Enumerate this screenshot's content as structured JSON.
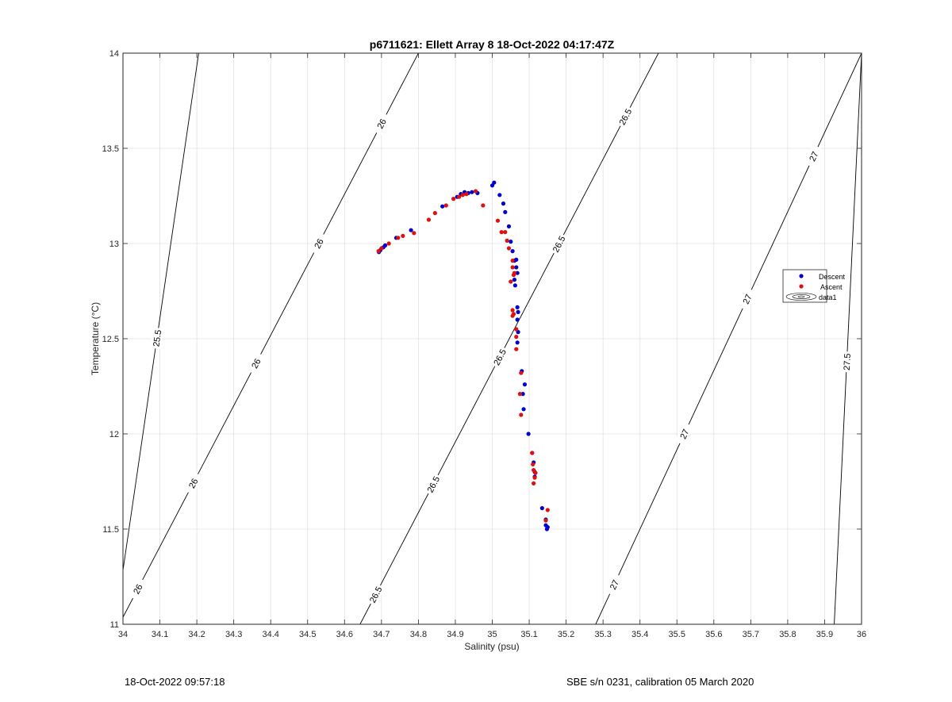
{
  "chart_data": {
    "type": "scatter",
    "title": "p6711621: Ellett Array 8 18-Oct-2022 04:17:47Z",
    "xlabel": "Salinity (psu)",
    "ylabel": "Temperature (°C)",
    "xlim": [
      34,
      36
    ],
    "ylim": [
      11,
      14
    ],
    "xticks": [
      "34",
      "34.1",
      "34.2",
      "34.3",
      "34.4",
      "34.5",
      "34.6",
      "34.7",
      "34.8",
      "34.9",
      "35",
      "35.1",
      "35.2",
      "35.3",
      "35.4",
      "35.5",
      "35.6",
      "35.7",
      "35.8",
      "35.9",
      "36"
    ],
    "yticks": [
      "11",
      "11.5",
      "12",
      "12.5",
      "13",
      "13.5",
      "14"
    ],
    "grid": true,
    "legend_position": "east",
    "legend": [
      "Descent",
      "Ascent",
      "data1"
    ],
    "colors": {
      "descent": "#0000cc",
      "ascent": "#dd1111",
      "contour": "#000000",
      "grid": "#e2e2e2"
    },
    "series": [
      {
        "name": "Descent",
        "points": [
          [
            34.693,
            12.955
          ],
          [
            34.697,
            12.965
          ],
          [
            34.705,
            12.98
          ],
          [
            34.71,
            12.99
          ],
          [
            34.74,
            13.03
          ],
          [
            34.78,
            13.07
          ],
          [
            34.865,
            13.195
          ],
          [
            34.905,
            13.245
          ],
          [
            34.915,
            13.26
          ],
          [
            34.925,
            13.27
          ],
          [
            34.935,
            13.265
          ],
          [
            34.945,
            13.27
          ],
          [
            34.96,
            13.265
          ],
          [
            35.0,
            13.305
          ],
          [
            35.005,
            13.32
          ],
          [
            35.02,
            13.255
          ],
          [
            35.03,
            13.21
          ],
          [
            35.035,
            13.165
          ],
          [
            35.045,
            13.09
          ],
          [
            35.05,
            13.01
          ],
          [
            35.055,
            12.96
          ],
          [
            35.06,
            12.91
          ],
          [
            35.065,
            12.915
          ],
          [
            35.065,
            12.875
          ],
          [
            35.068,
            12.845
          ],
          [
            35.06,
            12.81
          ],
          [
            35.062,
            12.78
          ],
          [
            35.068,
            12.665
          ],
          [
            35.07,
            12.64
          ],
          [
            35.068,
            12.6
          ],
          [
            35.07,
            12.535
          ],
          [
            35.068,
            12.48
          ],
          [
            35.08,
            12.33
          ],
          [
            35.088,
            12.26
          ],
          [
            35.083,
            12.21
          ],
          [
            35.085,
            12.13
          ],
          [
            35.098,
            12.0
          ],
          [
            35.108,
            11.9
          ],
          [
            35.112,
            11.85
          ],
          [
            35.115,
            11.8
          ],
          [
            35.115,
            11.775
          ],
          [
            35.135,
            11.61
          ],
          [
            35.145,
            11.55
          ],
          [
            35.145,
            11.52
          ],
          [
            35.15,
            11.51
          ],
          [
            35.148,
            11.5
          ]
        ]
      },
      {
        "name": "Ascent",
        "points": [
          [
            34.692,
            12.96
          ],
          [
            34.7,
            12.975
          ],
          [
            34.72,
            13.0
          ],
          [
            34.745,
            13.03
          ],
          [
            34.758,
            13.04
          ],
          [
            34.788,
            13.055
          ],
          [
            34.828,
            13.125
          ],
          [
            34.845,
            13.16
          ],
          [
            34.875,
            13.2
          ],
          [
            34.895,
            13.235
          ],
          [
            34.91,
            13.245
          ],
          [
            34.92,
            13.255
          ],
          [
            34.93,
            13.26
          ],
          [
            34.955,
            13.275
          ],
          [
            34.975,
            13.2
          ],
          [
            35.015,
            13.12
          ],
          [
            35.025,
            13.06
          ],
          [
            35.035,
            13.06
          ],
          [
            35.04,
            13.015
          ],
          [
            35.045,
            12.975
          ],
          [
            35.055,
            12.91
          ],
          [
            35.055,
            12.875
          ],
          [
            35.06,
            12.845
          ],
          [
            35.058,
            12.835
          ],
          [
            35.05,
            12.8
          ],
          [
            35.055,
            12.65
          ],
          [
            35.058,
            12.63
          ],
          [
            35.055,
            12.62
          ],
          [
            35.065,
            12.55
          ],
          [
            35.065,
            12.51
          ],
          [
            35.065,
            12.445
          ],
          [
            35.078,
            12.32
          ],
          [
            35.075,
            12.21
          ],
          [
            35.078,
            12.1
          ],
          [
            35.108,
            11.9
          ],
          [
            35.11,
            11.84
          ],
          [
            35.112,
            11.81
          ],
          [
            35.117,
            11.795
          ],
          [
            35.115,
            11.77
          ],
          [
            35.112,
            11.74
          ],
          [
            35.15,
            11.6
          ],
          [
            35.145,
            11.545
          ]
        ]
      }
    ],
    "contours": [
      {
        "label": "25.5",
        "s0": 33.9786,
        "s1": 34.205,
        "labels_at": [
          34.092
        ]
      },
      {
        "label": "26",
        "s0": 33.99,
        "s1": 34.8,
        "labels_at": [
          34.04,
          34.19,
          34.36,
          34.53,
          34.7
        ]
      },
      {
        "label": "26.5",
        "s0": 34.642,
        "s1": 35.45,
        "labels_at": [
          34.684,
          34.84,
          35.02,
          35.18,
          35.36
        ]
      },
      {
        "label": "27",
        "s0": 35.28,
        "s1": 36.0,
        "labels_at": [
          35.33,
          35.52,
          35.69,
          35.87
        ]
      },
      {
        "label": "27.5",
        "s0": 35.926,
        "s1": 36.0,
        "labels_at": [
          35.96
        ]
      }
    ],
    "footer_left": "18-Oct-2022 09:57:18",
    "footer_right": "SBE s/n 0231, calibration 05 March 2020"
  }
}
